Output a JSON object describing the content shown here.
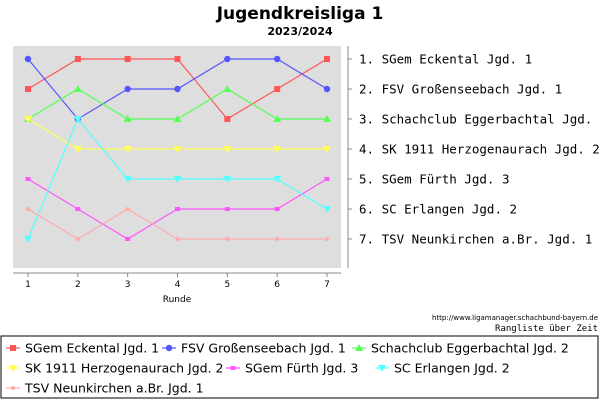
{
  "chart_data": {
    "type": "line",
    "title": "Jugendkreisliga 1",
    "subtitle": "2023/2024",
    "xlabel": "Runde",
    "ylabel": "",
    "x": [
      1,
      2,
      3,
      4,
      5,
      6,
      7
    ],
    "ylim": [
      1,
      7
    ],
    "y_inverted": true,
    "grid": false,
    "legend_position": "bottom",
    "right_labels": [
      "1.  SGem Eckental Jgd. 1",
      "2.  FSV Großenseebach Jgd. 1",
      "3.  Schachclub Eggerbachtal Jgd. 2",
      "4.  SK 1911 Herzogenaurach Jgd. 2",
      "5.  SGem Fürth Jgd. 3",
      "6.  SC Erlangen Jgd. 2",
      "7.  TSV Neunkirchen a.Br. Jgd. 1"
    ],
    "series": [
      {
        "name": "SGem Eckental Jgd. 1",
        "color": "#ff5555",
        "marker": "square",
        "values": [
          2,
          1,
          1,
          1,
          3,
          2,
          1
        ]
      },
      {
        "name": "FSV Großenseebach Jgd. 1",
        "color": "#5555ff",
        "marker": "circle",
        "values": [
          1,
          3,
          2,
          2,
          1,
          1,
          2
        ]
      },
      {
        "name": "Schachclub Eggerbachtal Jgd. 2",
        "color": "#55ff55",
        "marker": "triangle-up",
        "values": [
          3,
          2,
          3,
          3,
          2,
          3,
          3
        ]
      },
      {
        "name": "SK 1911 Herzogenaurach Jgd. 2",
        "color": "#ffff55",
        "marker": "triangle-down",
        "values": [
          3,
          4,
          4,
          4,
          4,
          4,
          4
        ]
      },
      {
        "name": "SGem Fürth Jgd. 3",
        "color": "#ff55ff",
        "marker": "square-small",
        "values": [
          5,
          6,
          7,
          6,
          6,
          6,
          5
        ]
      },
      {
        "name": "SC Erlangen Jgd. 2",
        "color": "#55ffff",
        "marker": "triangle-down",
        "values": [
          7,
          3,
          5,
          5,
          5,
          5,
          6
        ]
      },
      {
        "name": "TSV Neunkirchen a.Br. Jgd. 1",
        "color": "#ffaaaa",
        "marker": "dot",
        "values": [
          6,
          7,
          6,
          7,
          7,
          7,
          7
        ]
      }
    ]
  },
  "footer": {
    "url": "http://www.ligamanager.schachbund-bayern.de",
    "caption": "Rangliste über Zeit"
  }
}
